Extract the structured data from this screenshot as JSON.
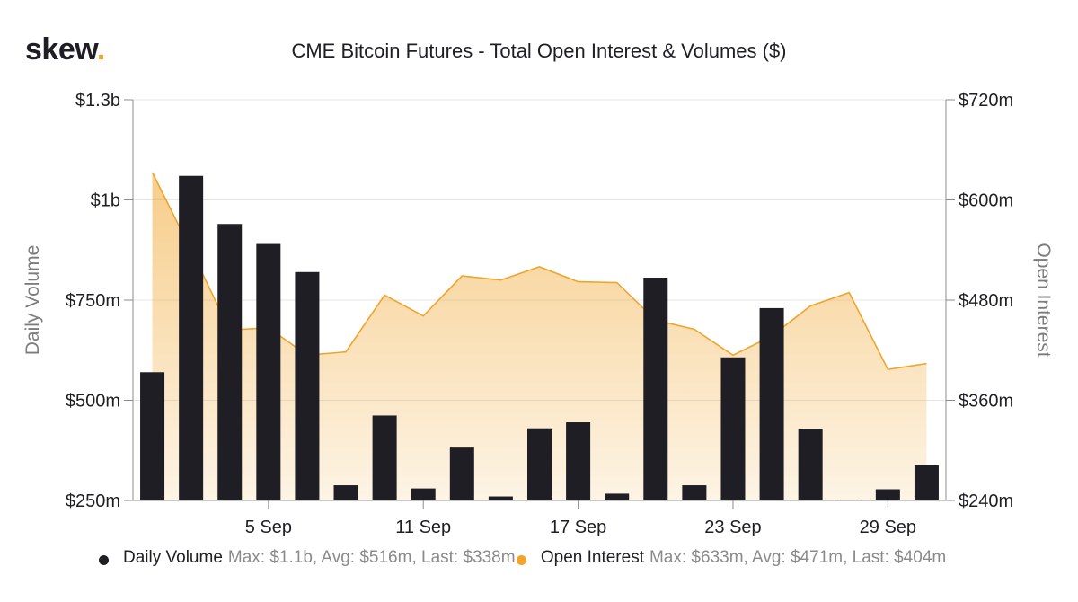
{
  "brand": {
    "name": "skew",
    "dot": "."
  },
  "chart_data": {
    "type": "bar+area",
    "title": "CME Bitcoin Futures - Total Open Interest & Volumes ($)",
    "x_ticks": [
      "5 Sep",
      "11 Sep",
      "17 Sep",
      "23 Sep",
      "29 Sep"
    ],
    "x_tick_index": [
      3,
      7,
      11,
      15,
      19
    ],
    "y_left": {
      "label": "Daily Volume",
      "min": 250000000,
      "max": 1250000000,
      "ticks": [
        {
          "value": 250000000,
          "label": "$250m"
        },
        {
          "value": 500000000,
          "label": "$500m"
        },
        {
          "value": 750000000,
          "label": "$750m"
        },
        {
          "value": 1000000000,
          "label": "$1b"
        },
        {
          "value": 1250000000,
          "label": "$1.3b"
        }
      ]
    },
    "y_right": {
      "label": "Open Interest",
      "min": 240000000,
      "max": 720000000,
      "ticks": [
        {
          "value": 240000000,
          "label": "$240m"
        },
        {
          "value": 360000000,
          "label": "$360m"
        },
        {
          "value": 480000000,
          "label": "$480m"
        },
        {
          "value": 600000000,
          "label": "$600m"
        },
        {
          "value": 720000000,
          "label": "$720m"
        }
      ]
    },
    "series": [
      {
        "name": "Daily Volume",
        "kind": "bar",
        "axis": "left",
        "color": "#1e1e24",
        "values": [
          570000000,
          1060000000,
          940000000,
          890000000,
          820000000,
          288000000,
          462000000,
          280000000,
          382000000,
          260000000,
          430000000,
          445000000,
          267000000,
          806000000,
          288000000,
          607000000,
          730000000,
          429000000,
          252000000,
          278000000,
          338000000
        ]
      },
      {
        "name": "Open Interest",
        "kind": "area",
        "axis": "right",
        "color": "#f0a42a",
        "values": [
          633000000,
          540000000,
          444000000,
          447000000,
          414000000,
          418000000,
          486000000,
          461000000,
          509000000,
          504000000,
          520000000,
          502000000,
          501000000,
          456000000,
          445000000,
          414000000,
          437000000,
          473000000,
          489000000,
          397000000,
          404000000
        ]
      }
    ],
    "legend": [
      {
        "name": "Daily Volume",
        "stats": "Max: $1.1b, Avg: $516m, Last: $338m",
        "color": "#1e1e24"
      },
      {
        "name": "Open Interest",
        "stats": "Max: $633m, Avg: $471m, Last: $404m",
        "color": "#f0a42a"
      }
    ],
    "legend_position": "bottom",
    "grid": true
  }
}
